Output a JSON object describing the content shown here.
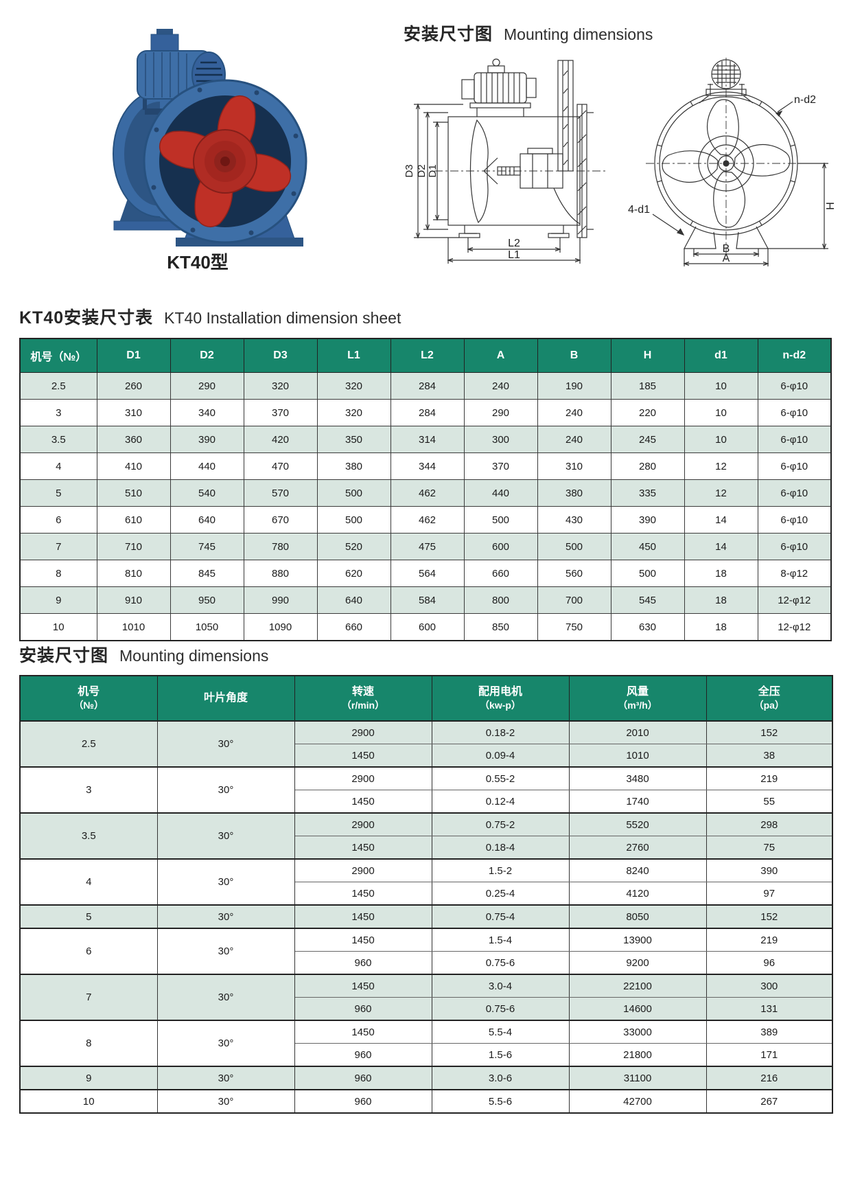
{
  "page": {
    "photo_label": "KT40型",
    "top_title_zh": "安装尺寸图",
    "top_title_en": "Mounting dimensions",
    "section1_zh": "KT40安装尺寸表",
    "section1_en": "KT40 Installation dimension sheet",
    "section2_zh": "安装尺寸图",
    "section2_en": "Mounting dimensions"
  },
  "colors": {
    "header_green": "#17866b",
    "row_light_green": "#d9e6e0",
    "casing_blue": "#3e6fa7",
    "blade_red": "#bf3026"
  },
  "drawings": {
    "side": {
      "d3": "D3",
      "d2": "D2",
      "d1": "D1",
      "l2": "L2",
      "l1": "L1"
    },
    "front": {
      "n_d2": "n-d2",
      "four_d1": "4-d1",
      "b": "B",
      "a": "A",
      "h": "H"
    }
  },
  "table1": {
    "headers": [
      "机号（№）",
      "D1",
      "D2",
      "D3",
      "L1",
      "L2",
      "A",
      "B",
      "H",
      "d1",
      "n-d2"
    ],
    "rows": [
      [
        "2.5",
        "260",
        "290",
        "320",
        "320",
        "284",
        "240",
        "190",
        "185",
        "10",
        "6-φ10"
      ],
      [
        "3",
        "310",
        "340",
        "370",
        "320",
        "284",
        "290",
        "240",
        "220",
        "10",
        "6-φ10"
      ],
      [
        "3.5",
        "360",
        "390",
        "420",
        "350",
        "314",
        "300",
        "240",
        "245",
        "10",
        "6-φ10"
      ],
      [
        "4",
        "410",
        "440",
        "470",
        "380",
        "344",
        "370",
        "310",
        "280",
        "12",
        "6-φ10"
      ],
      [
        "5",
        "510",
        "540",
        "570",
        "500",
        "462",
        "440",
        "380",
        "335",
        "12",
        "6-φ10"
      ],
      [
        "6",
        "610",
        "640",
        "670",
        "500",
        "462",
        "500",
        "430",
        "390",
        "14",
        "6-φ10"
      ],
      [
        "7",
        "710",
        "745",
        "780",
        "520",
        "475",
        "600",
        "500",
        "450",
        "14",
        "6-φ10"
      ],
      [
        "8",
        "810",
        "845",
        "880",
        "620",
        "564",
        "660",
        "560",
        "500",
        "18",
        "8-φ12"
      ],
      [
        "9",
        "910",
        "950",
        "990",
        "640",
        "584",
        "800",
        "700",
        "545",
        "18",
        "12-φ12"
      ],
      [
        "10",
        "1010",
        "1050",
        "1090",
        "660",
        "600",
        "850",
        "750",
        "630",
        "18",
        "12-φ12"
      ]
    ]
  },
  "table2": {
    "headers": [
      {
        "t": "机号",
        "s": "（№）"
      },
      {
        "t": "叶片角度",
        "s": ""
      },
      {
        "t": "转速",
        "s": "（r/min）"
      },
      {
        "t": "配用电机",
        "s": "（kw-p）"
      },
      {
        "t": "风量",
        "s": "（m³/h）"
      },
      {
        "t": "全压",
        "s": "（pa）"
      }
    ],
    "groups": [
      {
        "no": "2.5",
        "angle": "30°",
        "rows": [
          [
            "2900",
            "0.18-2",
            "2010",
            "152"
          ],
          [
            "1450",
            "0.09-4",
            "1010",
            "38"
          ]
        ]
      },
      {
        "no": "3",
        "angle": "30°",
        "rows": [
          [
            "2900",
            "0.55-2",
            "3480",
            "219"
          ],
          [
            "1450",
            "0.12-4",
            "1740",
            "55"
          ]
        ]
      },
      {
        "no": "3.5",
        "angle": "30°",
        "rows": [
          [
            "2900",
            "0.75-2",
            "5520",
            "298"
          ],
          [
            "1450",
            "0.18-4",
            "2760",
            "75"
          ]
        ]
      },
      {
        "no": "4",
        "angle": "30°",
        "rows": [
          [
            "2900",
            "1.5-2",
            "8240",
            "390"
          ],
          [
            "1450",
            "0.25-4",
            "4120",
            "97"
          ]
        ]
      },
      {
        "no": "5",
        "angle": "30°",
        "rows": [
          [
            "1450",
            "0.75-4",
            "8050",
            "152"
          ]
        ]
      },
      {
        "no": "6",
        "angle": "30°",
        "rows": [
          [
            "1450",
            "1.5-4",
            "13900",
            "219"
          ],
          [
            "960",
            "0.75-6",
            "9200",
            "96"
          ]
        ]
      },
      {
        "no": "7",
        "angle": "30°",
        "rows": [
          [
            "1450",
            "3.0-4",
            "22100",
            "300"
          ],
          [
            "960",
            "0.75-6",
            "14600",
            "131"
          ]
        ]
      },
      {
        "no": "8",
        "angle": "30°",
        "rows": [
          [
            "1450",
            "5.5-4",
            "33000",
            "389"
          ],
          [
            "960",
            "1.5-6",
            "21800",
            "171"
          ]
        ]
      },
      {
        "no": "9",
        "angle": "30°",
        "rows": [
          [
            "960",
            "3.0-6",
            "31100",
            "216"
          ]
        ]
      },
      {
        "no": "10",
        "angle": "30°",
        "rows": [
          [
            "960",
            "5.5-6",
            "42700",
            "267"
          ]
        ]
      }
    ]
  }
}
